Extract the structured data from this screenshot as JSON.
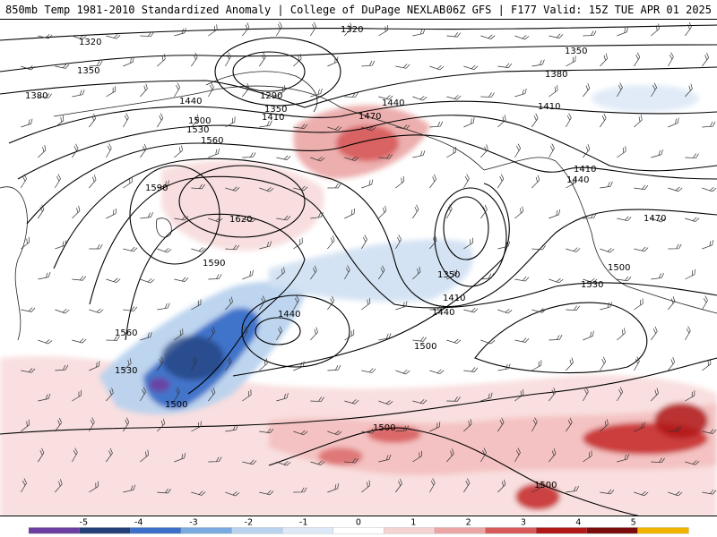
{
  "header": {
    "left_title": "850mb Temp 1981-2010 Standardized Anomaly | College of DuPage NEXLAB",
    "right_title": "06Z GFS | F177 Valid: 15Z TUE APR 01 2025"
  },
  "contour_labels": {
    "l1320a": "1320",
    "l1320b": "1320",
    "l1350a": "1350",
    "l1350b": "1350",
    "l1350c": "1350",
    "l1350d": "1350",
    "l1380a": "1380",
    "l1380b": "1380",
    "l1290": "1290",
    "l1410a": "1410",
    "l1410b": "1410",
    "l1410c": "1410",
    "l1410d": "1410",
    "l1440a": "1440",
    "l1440b": "1440",
    "l1440c": "1440",
    "l1440d": "1440",
    "l1440e": "1440",
    "l1470a": "1470",
    "l1470b": "1470",
    "l1500a": "1500",
    "l1500b": "1500",
    "l1500c": "1500",
    "l1500d": "1500",
    "l1500e": "1500",
    "l1500f": "1500",
    "l1530a": "1530",
    "l1530b": "1530",
    "l1530c": "1530",
    "l1560a": "1560",
    "l1560b": "1560",
    "l1590a": "1590",
    "l1590b": "1590",
    "l1620": "1620"
  },
  "colorbar": {
    "ticks": [
      "-5",
      "-4",
      "-3",
      "-2",
      "-1",
      "0",
      "1",
      "2",
      "3",
      "4",
      "5"
    ],
    "colors": [
      "#6b3fa0",
      "#243f78",
      "#3b6fc8",
      "#7aa9e0",
      "#b9d3ee",
      "#dde9f6",
      "#ffffff",
      "#f6d3d3",
      "#eba5a5",
      "#d75a5a",
      "#b01818",
      "#7a0c0c",
      "#f0b400"
    ]
  }
}
